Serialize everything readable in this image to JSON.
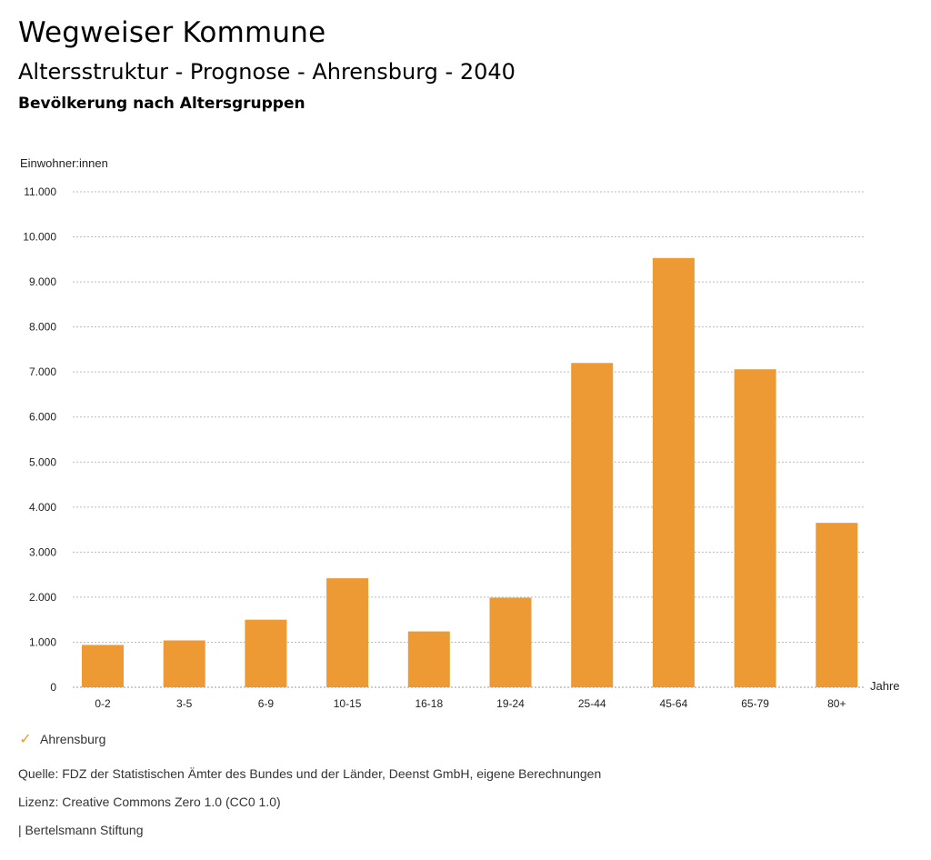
{
  "header": {
    "title": "Wegweiser Kommune",
    "subtitle": "Altersstruktur - Prognose - Ahrensburg - 2040",
    "section": "Bevölkerung nach Altersgruppen"
  },
  "legend": {
    "items": [
      {
        "label": "Ahrensburg",
        "color": "#ED9934",
        "icon": "check-icon"
      }
    ]
  },
  "footer": {
    "source": "Quelle: FDZ der Statistischen Ämter des Bundes und der Länder, Deenst GmbH, eigene Berechnungen",
    "license": "Lizenz: Creative Commons Zero 1.0 (CC0 1.0)",
    "brand": "| Bertelsmann Stiftung"
  },
  "chart_data": {
    "type": "bar",
    "title": "Bevölkerung nach Altersgruppen",
    "ylabel": "Einwohner:innen",
    "xlabel": "Jahre",
    "categories": [
      "0-2",
      "3-5",
      "6-9",
      "10-15",
      "16-18",
      "19-24",
      "25-44",
      "45-64",
      "65-79",
      "80+"
    ],
    "series": [
      {
        "name": "Ahrensburg",
        "color": "#ED9934",
        "values": [
          940,
          1040,
          1500,
          2420,
          1240,
          1990,
          7200,
          9530,
          7060,
          3650
        ]
      }
    ],
    "ylim": [
      0,
      11000
    ],
    "yticks": [
      0,
      1000,
      2000,
      3000,
      4000,
      5000,
      6000,
      7000,
      8000,
      9000,
      10000,
      11000
    ],
    "ytick_labels": [
      "0",
      "1.000",
      "2.000",
      "3.000",
      "4.000",
      "5.000",
      "6.000",
      "7.000",
      "8.000",
      "9.000",
      "10.000",
      "11.000"
    ],
    "grid": true,
    "grid_style": "dotted",
    "legend_position": "bottom-left"
  }
}
